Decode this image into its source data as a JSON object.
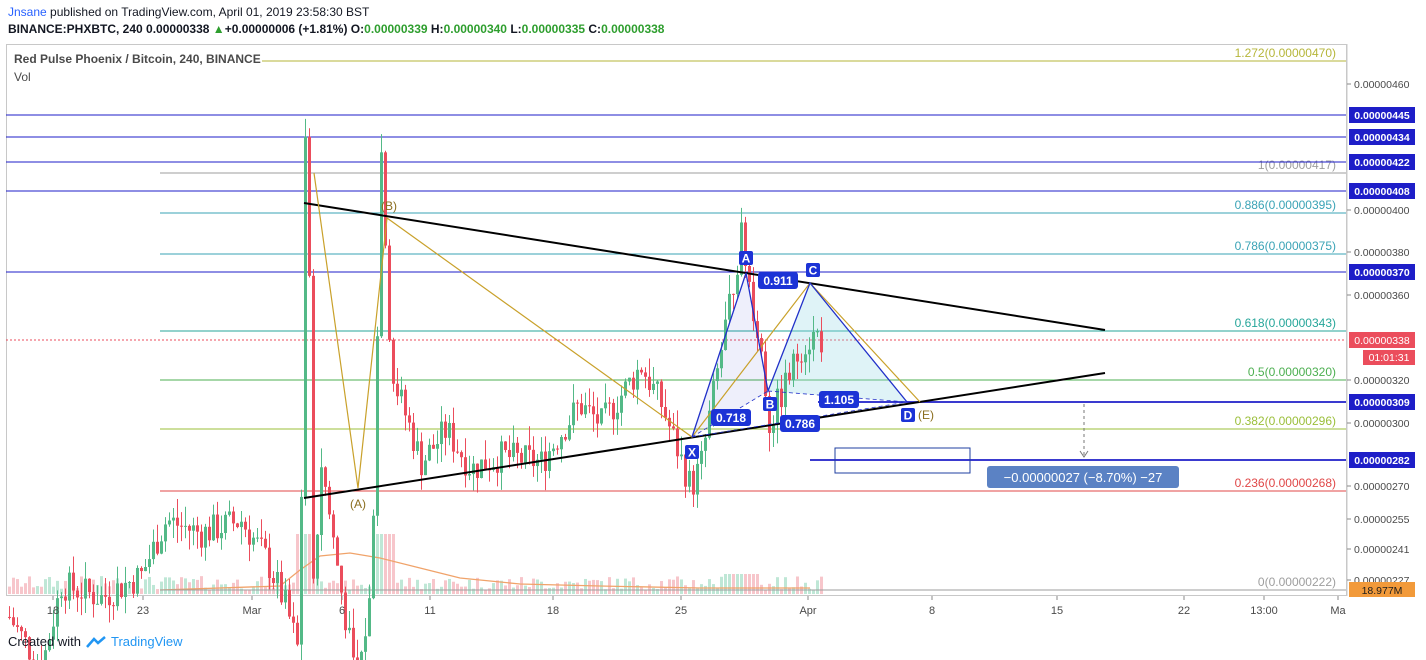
{
  "header": {
    "author": "Jnsane",
    "published": "published on TradingView.com, April 01, 2019 23:58:30 BST",
    "symbol": "BINANCE:PHXBTC, 240",
    "last": "0.00000338",
    "change_arrow": "▲",
    "change": "+0.00000006 (+1.81%)",
    "o_label": "O:",
    "o": "0.00000339",
    "h_label": "H:",
    "h": "0.00000340",
    "l_label": "L:",
    "l": "0.00000335",
    "c_label": "C:",
    "c": "0.00000338"
  },
  "legend": {
    "title": "Red Pulse Phoenix / Bitcoin, 240, BINANCE",
    "vol": "Vol"
  },
  "footer": {
    "created_with": "Created with",
    "brand": "TradingView"
  },
  "colors": {
    "up": "#53b987",
    "down": "#eb4d5c",
    "blue_line": "#1e1ec8",
    "pattern_blue": "#2130c9",
    "pattern_gold": "#c9a12b",
    "price_label": "#eb4d5c"
  },
  "y_axis": {
    "ticks": [
      "0.00000460",
      "0.00000400",
      "0.00000380",
      "0.00000360",
      "0.00000320",
      "0.00000300",
      "0.00000270",
      "0.00000255",
      "0.00000241",
      "0.00000227"
    ],
    "highlight_levels": [
      "0.00000445",
      "0.00000434",
      "0.00000422",
      "0.00000408",
      "0.00000370",
      "0.00000309",
      "0.00000282"
    ],
    "current_price": "0.00000338",
    "countdown": "01:01:31",
    "volume_label": "18.977M"
  },
  "x_axis": {
    "ticks": [
      "18",
      "23",
      "Mar",
      "6",
      "11",
      "18",
      "25",
      "Apr",
      "8",
      "15",
      "22",
      "13:00",
      "Ma"
    ]
  },
  "fib_levels": [
    {
      "label": "1.272(0.00000470)",
      "color": "#b6b63a"
    },
    {
      "label": "1(0.00000417)",
      "color": "#9e9e9e"
    },
    {
      "label": "0.886(0.00000395)",
      "color": "#3aa3b6"
    },
    {
      "label": "0.786(0.00000375)",
      "color": "#3aa3b6"
    },
    {
      "label": "0.618(0.00000343)",
      "color": "#26a69a"
    },
    {
      "label": "0.5(0.00000320)",
      "color": "#4caf50"
    },
    {
      "label": "0.382(0.00000296)",
      "color": "#9bbf3a"
    },
    {
      "label": "0.236(0.00000268)",
      "color": "#e04747"
    },
    {
      "label": "0(0.00000222)",
      "color": "#9e9e9e"
    }
  ],
  "pattern": {
    "points": [
      "X",
      "A",
      "B",
      "C",
      "D"
    ],
    "ratios": [
      "0.911",
      "0.718",
      "1.105",
      "0.786"
    ],
    "elliott": [
      "(A)",
      "(B)",
      "(E)"
    ]
  },
  "measure": {
    "label": "−0.00000027 (−8.70%) −27"
  }
}
